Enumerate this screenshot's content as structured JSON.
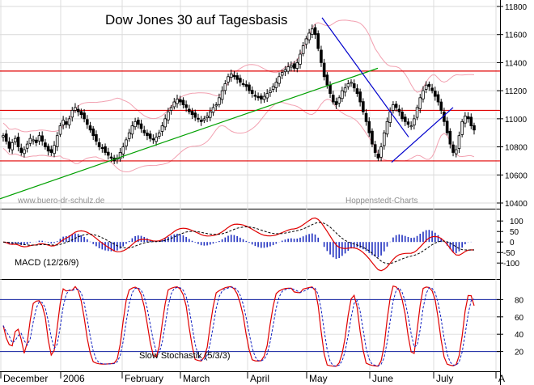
{
  "chart_data": [
    {
      "type": "candlestick",
      "title": "Dow Jones 30 auf Tagesbasis",
      "watermark_left": "www.buero-dr-schulz.de",
      "watermark_right": "Hoppenstedt-Charts",
      "ylim": [
        10400,
        11800
      ],
      "y_ticks": [
        "11800",
        "11600",
        "11400",
        "11200",
        "11000",
        "10800",
        "10600",
        "10400"
      ],
      "x_ticks": [
        "December",
        "2006",
        "February",
        "March",
        "April",
        "May",
        "June",
        "July",
        "A"
      ],
      "horizontal_lines": [
        11340,
        11060,
        10700
      ],
      "close_series": [
        10880,
        10840,
        10790,
        10830,
        10860,
        10800,
        10760,
        10780,
        10820,
        10860,
        10850,
        10830,
        10880,
        10840,
        10800,
        10770,
        10760,
        10810,
        10880,
        10950,
        10990,
        10960,
        11000,
        11060,
        11080,
        11050,
        11030,
        11000,
        10960,
        10920,
        10880,
        10840,
        10800,
        10790,
        10760,
        10740,
        10720,
        10700,
        10720,
        10760,
        10800,
        10850,
        10900,
        10950,
        10980,
        10960,
        10930,
        10900,
        10880,
        10860,
        10850,
        10870,
        10900,
        10950,
        11000,
        11050,
        11080,
        11120,
        11140,
        11120,
        11100,
        11080,
        11050,
        11030,
        11010,
        11000,
        10980,
        11000,
        11020,
        11050,
        11080,
        11100,
        11150,
        11200,
        11250,
        11300,
        11320,
        11300,
        11280,
        11260,
        11250,
        11230,
        11200,
        11180,
        11160,
        11150,
        11140,
        11160,
        11180,
        11200,
        11230,
        11260,
        11300,
        11330,
        11350,
        11370,
        11380,
        11360,
        11400,
        11460,
        11520,
        11570,
        11610,
        11640,
        11600,
        11500,
        11400,
        11300,
        11240,
        11180,
        11120,
        11100,
        11150,
        11200,
        11220,
        11250,
        11260,
        11220,
        11180,
        11120,
        11050,
        10980,
        10900,
        10820,
        10760,
        10720,
        10800,
        10900,
        10980,
        11050,
        11100,
        11080,
        11050,
        11000,
        10980,
        10960,
        10950,
        11000,
        11080,
        11150,
        11200,
        11240,
        11230,
        11200,
        11160,
        11120,
        11060,
        10980,
        10900,
        10820,
        10760,
        10780,
        10880,
        10980,
        11020,
        11000,
        10950,
        10920
      ],
      "trend_lines": [
        {
          "color": "#00a000",
          "from": [
            "start",
            10430
          ],
          "to": [
            "late May",
            11360
          ]
        },
        {
          "color": "#0000cc",
          "from": [
            "early May",
            11720
          ],
          "to": [
            "mid June",
            10870
          ]
        },
        {
          "color": "#0000cc",
          "from": [
            "mid June",
            10690
          ],
          "to": [
            "early July",
            11080
          ]
        }
      ]
    },
    {
      "type": "line",
      "title": "MACD (12/26/9)",
      "ylim": [
        -130,
        120
      ],
      "y_ticks": [
        "100",
        "50",
        "0",
        "-50",
        "-100"
      ],
      "series": []
    },
    {
      "type": "line",
      "title": "Slow Stochastik (5/3/3)",
      "ylim": [
        0,
        100
      ],
      "y_ticks": [
        "80",
        "60",
        "40",
        "20"
      ],
      "reference_lines": [
        80,
        20
      ],
      "series": []
    }
  ]
}
